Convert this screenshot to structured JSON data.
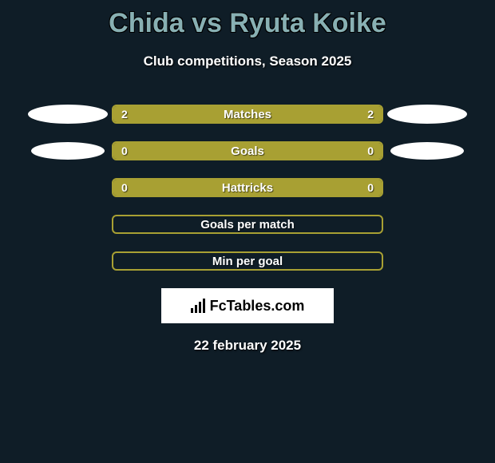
{
  "title": "Chida vs Ryuta Koike",
  "subtitle": "Club competitions, Season 2025",
  "date": "22 february 2025",
  "logo_text": "FcTables.com",
  "colors": {
    "background": "#0f1d27",
    "title": "#88b0b3",
    "bar_fill": "#a8a033",
    "bar_border": "#a8a033",
    "ellipse": "#ffffff"
  },
  "rows": [
    {
      "label": "Matches",
      "left_value": "2",
      "right_value": "2",
      "left_fill_pct": 50,
      "right_fill_pct": 50,
      "show_left_crest": true,
      "show_right_crest": true,
      "crest_size": "large"
    },
    {
      "label": "Goals",
      "left_value": "0",
      "right_value": "0",
      "left_fill_pct": 100,
      "right_fill_pct": 0,
      "show_left_crest": true,
      "show_right_crest": true,
      "crest_size": "small"
    },
    {
      "label": "Hattricks",
      "left_value": "0",
      "right_value": "0",
      "left_fill_pct": 100,
      "right_fill_pct": 0,
      "show_left_crest": false,
      "show_right_crest": false
    },
    {
      "label": "Goals per match",
      "left_value": "",
      "right_value": "",
      "left_fill_pct": 0,
      "right_fill_pct": 0,
      "show_left_crest": false,
      "show_right_crest": false
    },
    {
      "label": "Min per goal",
      "left_value": "",
      "right_value": "",
      "left_fill_pct": 0,
      "right_fill_pct": 0,
      "show_left_crest": false,
      "show_right_crest": false
    }
  ]
}
